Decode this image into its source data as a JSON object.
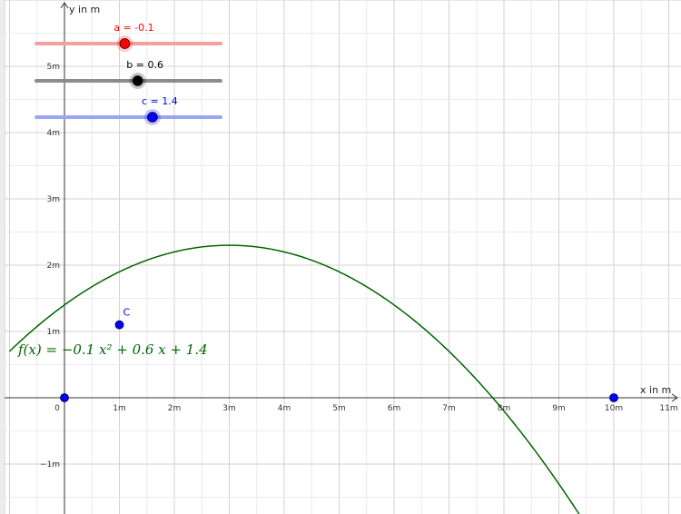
{
  "axes": {
    "x_label": "x in m",
    "y_label": "y in m",
    "x_ticks": [
      {
        "value": 0,
        "label": "0"
      },
      {
        "value": 1,
        "label": "1m"
      },
      {
        "value": 2,
        "label": "2m"
      },
      {
        "value": 3,
        "label": "3m"
      },
      {
        "value": 4,
        "label": "4m"
      },
      {
        "value": 5,
        "label": "5m"
      },
      {
        "value": 6,
        "label": "6m"
      },
      {
        "value": 7,
        "label": "7m"
      },
      {
        "value": 8,
        "label": "8m"
      },
      {
        "value": 9,
        "label": "9m"
      },
      {
        "value": 10,
        "label": "10m"
      },
      {
        "value": 11,
        "label": "11m"
      }
    ],
    "y_ticks": [
      {
        "value": -1,
        "label": "−1m"
      },
      {
        "value": 1,
        "label": "1m"
      },
      {
        "value": 2,
        "label": "2m"
      },
      {
        "value": 3,
        "label": "3m"
      },
      {
        "value": 4,
        "label": "4m"
      },
      {
        "value": 5,
        "label": "5m"
      }
    ],
    "x_range": [
      -1,
      11.5
    ],
    "y_range": [
      -1.75,
      6
    ],
    "grid": true
  },
  "sliders": [
    {
      "name": "a",
      "label": "a = -0.1",
      "value": -0.1,
      "position": 0.48,
      "color": "#ff0000",
      "track_color": "#f4a0a0"
    },
    {
      "name": "b",
      "label": "b = 0.6",
      "value": 0.6,
      "position": 0.55,
      "color": "#000000",
      "track_color": "#8c8c8c"
    },
    {
      "name": "c",
      "label": "c = 1.4",
      "value": 1.4,
      "position": 0.63,
      "color": "#0000ff",
      "track_color": "#9aa6f2"
    }
  ],
  "function": {
    "label": "f(x)  =  −0.1 x² + 0.6 x + 1.4",
    "a": -0.1,
    "b": 0.6,
    "c": 1.4,
    "color": "#006400",
    "domain": [
      -1,
      9.5
    ]
  },
  "points": [
    {
      "name": "C",
      "label": "C",
      "x": 1,
      "y": 1.1,
      "color": "#0000ff"
    },
    {
      "name": "origin",
      "label": "",
      "x": 0,
      "y": 0,
      "color": "#0000ff"
    },
    {
      "name": "ten",
      "label": "",
      "x": 10,
      "y": 0,
      "color": "#0000ff"
    }
  ]
}
